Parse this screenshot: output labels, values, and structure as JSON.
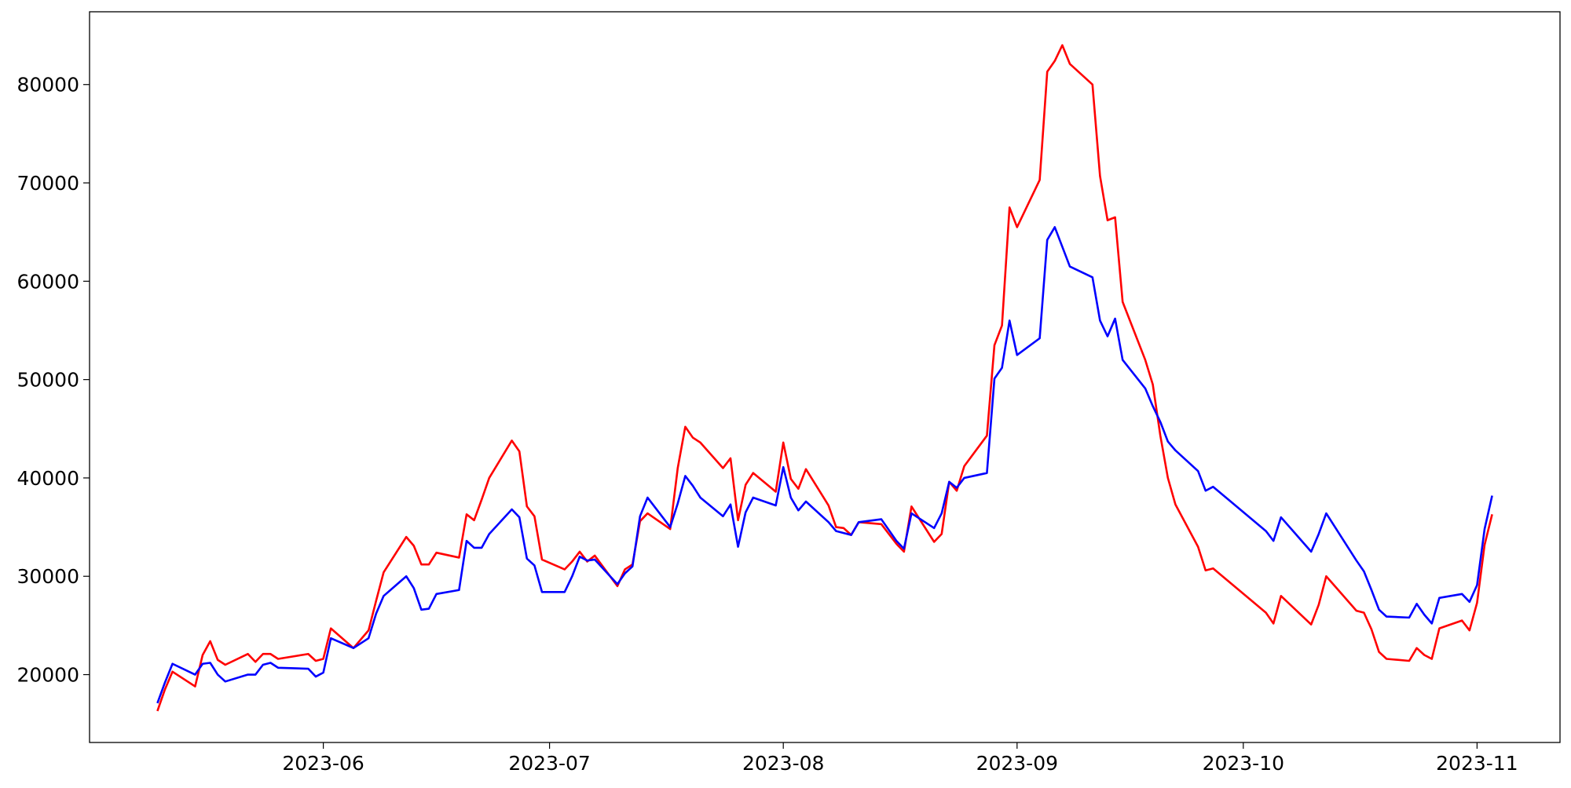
{
  "chart_data": {
    "type": "line",
    "x": [
      "2023-05-10",
      "2023-05-11",
      "2023-05-12",
      "2023-05-15",
      "2023-05-16",
      "2023-05-17",
      "2023-05-18",
      "2023-05-19",
      "2023-05-22",
      "2023-05-23",
      "2023-05-24",
      "2023-05-25",
      "2023-05-26",
      "2023-05-30",
      "2023-05-31",
      "2023-06-01",
      "2023-06-02",
      "2023-06-05",
      "2023-06-07",
      "2023-06-08",
      "2023-06-09",
      "2023-06-12",
      "2023-06-13",
      "2023-06-14",
      "2023-06-15",
      "2023-06-16",
      "2023-06-19",
      "2023-06-20",
      "2023-06-21",
      "2023-06-22",
      "2023-06-23",
      "2023-06-26",
      "2023-06-27",
      "2023-06-28",
      "2023-06-29",
      "2023-06-30",
      "2023-07-03",
      "2023-07-04",
      "2023-07-05",
      "2023-07-06",
      "2023-07-07",
      "2023-07-10",
      "2023-07-11",
      "2023-07-12",
      "2023-07-13",
      "2023-07-14",
      "2023-07-17",
      "2023-07-18",
      "2023-07-19",
      "2023-07-20",
      "2023-07-21",
      "2023-07-24",
      "2023-07-25",
      "2023-07-26",
      "2023-07-27",
      "2023-07-28",
      "2023-07-31",
      "2023-08-01",
      "2023-08-02",
      "2023-08-03",
      "2023-08-04",
      "2023-08-07",
      "2023-08-08",
      "2023-08-09",
      "2023-08-10",
      "2023-08-11",
      "2023-08-14",
      "2023-08-16",
      "2023-08-17",
      "2023-08-18",
      "2023-08-21",
      "2023-08-22",
      "2023-08-23",
      "2023-08-24",
      "2023-08-25",
      "2023-08-28",
      "2023-08-29",
      "2023-08-30",
      "2023-08-31",
      "2023-09-01",
      "2023-09-04",
      "2023-09-05",
      "2023-09-06",
      "2023-09-07",
      "2023-09-08",
      "2023-09-11",
      "2023-09-12",
      "2023-09-13",
      "2023-09-14",
      "2023-09-15",
      "2023-09-18",
      "2023-09-19",
      "2023-09-20",
      "2023-09-21",
      "2023-09-22",
      "2023-09-25",
      "2023-09-26",
      "2023-09-27",
      "2023-10-04",
      "2023-10-05",
      "2023-10-06",
      "2023-10-10",
      "2023-10-11",
      "2023-10-12",
      "2023-10-16",
      "2023-10-17",
      "2023-10-18",
      "2023-10-19",
      "2023-10-20",
      "2023-10-23",
      "2023-10-24",
      "2023-10-25",
      "2023-10-26",
      "2023-10-27",
      "2023-10-30",
      "2023-10-31",
      "2023-11-01",
      "2023-11-02",
      "2023-11-03"
    ],
    "series": [
      {
        "color": "#ff0000",
        "values": [
          16300,
          18500,
          20300,
          18800,
          22000,
          23400,
          21500,
          21000,
          22100,
          21300,
          22100,
          22100,
          21600,
          22100,
          21400,
          21600,
          24700,
          22700,
          24500,
          27500,
          30400,
          34000,
          33100,
          31200,
          31200,
          32400,
          31900,
          36300,
          35700,
          37800,
          40000,
          43800,
          42700,
          37100,
          36100,
          31700,
          30700,
          31500,
          32500,
          31500,
          32100,
          29000,
          30700,
          31200,
          35600,
          36400,
          34800,
          41000,
          45200,
          44100,
          43600,
          41000,
          42000,
          35700,
          39300,
          40500,
          38600,
          43600,
          39900,
          38900,
          40900,
          37200,
          35000,
          34900,
          34200,
          35500,
          35300,
          33300,
          32500,
          37100,
          33500,
          34300,
          39600,
          38700,
          41200,
          44300,
          53500,
          55500,
          67500,
          65500,
          70300,
          81300,
          82400,
          84000,
          82100,
          80000,
          70700,
          66200,
          66500,
          57900,
          52000,
          49500,
          44300,
          40000,
          37300,
          33000,
          30600,
          30800,
          26300,
          25200,
          28000,
          25100,
          27100,
          30000,
          26500,
          26300,
          24600,
          22300,
          21600,
          21400,
          22700,
          22000,
          21600,
          24700,
          25500,
          24500,
          27300,
          33200,
          36300
        ]
      },
      {
        "color": "#0000ff",
        "values": [
          17100,
          19200,
          21100,
          20000,
          21100,
          21200,
          20000,
          19300,
          20000,
          20000,
          21000,
          21200,
          20700,
          20600,
          19800,
          20200,
          23700,
          22700,
          23700,
          26200,
          28000,
          30000,
          28800,
          26600,
          26700,
          28200,
          28600,
          33600,
          32900,
          32900,
          34300,
          36800,
          36000,
          31800,
          31100,
          28400,
          28400,
          30000,
          32000,
          31600,
          31700,
          29200,
          30300,
          31000,
          36100,
          38000,
          35000,
          37400,
          40200,
          39200,
          38000,
          36100,
          37300,
          33000,
          36500,
          38000,
          37200,
          41100,
          38000,
          36700,
          37600,
          35500,
          34600,
          34400,
          34200,
          35500,
          35800,
          33600,
          32800,
          36400,
          34900,
          36400,
          39600,
          39000,
          40000,
          40500,
          50100,
          51200,
          56000,
          52500,
          54200,
          64200,
          65500,
          63500,
          61500,
          60400,
          56000,
          54400,
          56200,
          52000,
          49100,
          47300,
          45700,
          43700,
          42800,
          40700,
          38700,
          39100,
          34600,
          33600,
          36000,
          32500,
          34300,
          36400,
          31600,
          30500,
          28600,
          26600,
          25900,
          25800,
          27200,
          26100,
          25200,
          27800,
          28200,
          27400,
          29100,
          34800,
          38200
        ]
      }
    ],
    "xlim": [
      "2023-05-01",
      "2023-11-12"
    ],
    "xticks": [
      {
        "value": "2023-06-01",
        "label": "2023-06"
      },
      {
        "value": "2023-07-01",
        "label": "2023-07"
      },
      {
        "value": "2023-08-01",
        "label": "2023-08"
      },
      {
        "value": "2023-09-01",
        "label": "2023-09"
      },
      {
        "value": "2023-10-01",
        "label": "2023-10"
      },
      {
        "value": "2023-11-01",
        "label": "2023-11"
      }
    ],
    "ylim": [
      13100,
      87400
    ],
    "yticks": [
      20000,
      30000,
      40000,
      50000,
      60000,
      70000,
      80000
    ],
    "grid": false
  }
}
